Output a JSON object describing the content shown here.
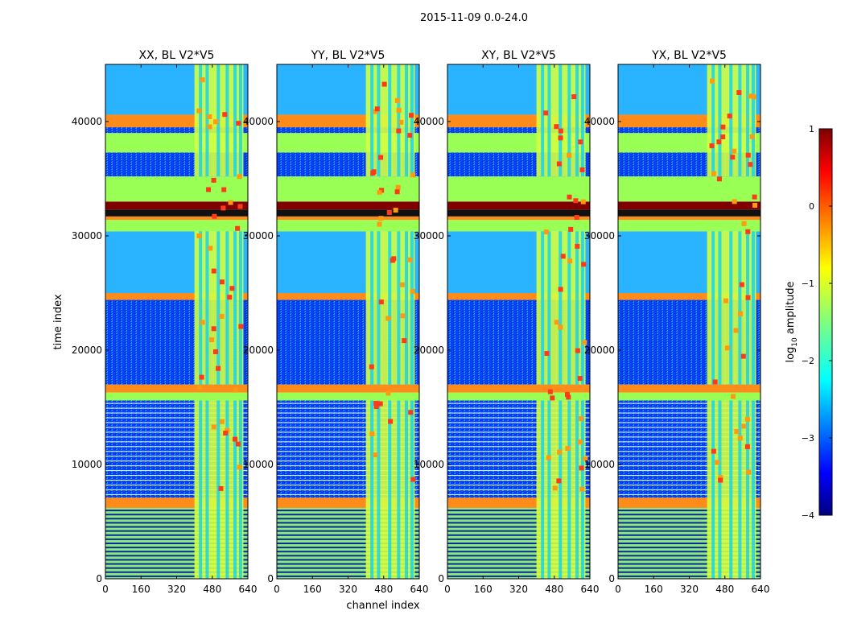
{
  "figure_title": "2015-11-09 0.0-24.0",
  "colorbar": {
    "label_prefix": "log",
    "label_sub": "10",
    "label_suffix": " amplitude",
    "range": [
      -4,
      1
    ],
    "ticks": [
      "1",
      "0",
      "−1",
      "−2",
      "−3",
      "−4"
    ],
    "tick_values": [
      1,
      0,
      -1,
      -2,
      -3,
      -4
    ]
  },
  "chart_data": [
    {
      "type": "heatmap",
      "title": "XX, BL V2*V5",
      "xlabel": "",
      "ylabel": "time index",
      "xlim": [
        0,
        640
      ],
      "ylim": [
        0,
        45000
      ],
      "xticks": [
        0,
        160,
        320,
        480,
        640
      ],
      "yticks": [
        0,
        10000,
        20000,
        30000,
        40000
      ],
      "xtick_labels": [
        "0",
        "160",
        "320",
        "480",
        "640"
      ],
      "ytick_labels": [
        "0",
        "10000",
        "20000",
        "30000",
        "40000"
      ],
      "colormap": "jet",
      "value_range": [
        -4,
        1
      ]
    },
    {
      "type": "heatmap",
      "title": "YY, BL V2*V5",
      "xlabel": "channel index",
      "ylabel": "",
      "xlim": [
        0,
        640
      ],
      "ylim": [
        0,
        45000
      ],
      "xticks": [
        0,
        160,
        320,
        480,
        640
      ],
      "yticks": [
        0,
        10000,
        20000,
        30000,
        40000
      ],
      "xtick_labels": [
        "0",
        "160",
        "320",
        "480",
        "640"
      ],
      "ytick_labels": [
        "0",
        "10000",
        "20000",
        "30000",
        "40000"
      ],
      "colormap": "jet",
      "value_range": [
        -4,
        1
      ]
    },
    {
      "type": "heatmap",
      "title": "XY, BL V2*V5",
      "xlabel": "",
      "ylabel": "",
      "xlim": [
        0,
        640
      ],
      "ylim": [
        0,
        45000
      ],
      "xticks": [
        0,
        160,
        320,
        480,
        640
      ],
      "yticks": [
        0,
        10000,
        20000,
        30000,
        40000
      ],
      "xtick_labels": [
        "0",
        "160",
        "320",
        "480",
        "640"
      ],
      "ytick_labels": [
        "0",
        "10000",
        "20000",
        "30000",
        "40000"
      ],
      "colormap": "jet",
      "value_range": [
        -4,
        1
      ]
    },
    {
      "type": "heatmap",
      "title": "YX, BL V2*V5",
      "xlabel": "",
      "ylabel": "",
      "xlim": [
        0,
        640
      ],
      "ylim": [
        0,
        45000
      ],
      "xticks": [
        0,
        160,
        320,
        480,
        640
      ],
      "yticks": [
        0,
        10000,
        20000,
        30000,
        40000
      ],
      "xtick_labels": [
        "0",
        "160",
        "320",
        "480",
        "640"
      ],
      "ytick_labels": [
        "0",
        "10000",
        "20000",
        "30000",
        "40000"
      ],
      "colormap": "jet",
      "value_range": [
        -4,
        1
      ]
    }
  ],
  "colors": {
    "flagged": "#99ff55",
    "saturated": "#800000",
    "rfi_band": "#ff7f00",
    "low": "#1f3fff"
  }
}
